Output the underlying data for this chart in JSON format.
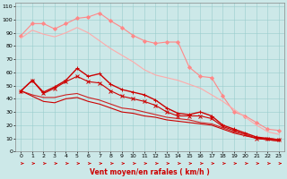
{
  "title": "",
  "xlabel": "Vent moyen/en rafales ( km/h )",
  "bg_color": "#cce8e8",
  "grid_color": "#99cccc",
  "x": [
    0,
    1,
    2,
    3,
    4,
    5,
    6,
    7,
    8,
    9,
    10,
    11,
    12,
    13,
    14,
    15,
    16,
    17,
    18,
    19,
    20,
    21,
    22,
    23
  ],
  "series": [
    {
      "color": "#ff8888",
      "data": [
        88,
        97,
        97,
        93,
        97,
        101,
        102,
        105,
        99,
        94,
        88,
        84,
        82,
        83,
        83,
        64,
        57,
        56,
        42,
        30,
        27,
        22,
        17,
        16
      ],
      "marker": "D",
      "ms": 2.0,
      "lw": 0.8
    },
    {
      "color": "#ffaaaa",
      "data": [
        86,
        92,
        89,
        87,
        90,
        94,
        90,
        84,
        78,
        73,
        68,
        62,
        58,
        56,
        54,
        51,
        48,
        43,
        38,
        32,
        26,
        20,
        15,
        13
      ],
      "marker": null,
      "ms": 0,
      "lw": 0.8
    },
    {
      "color": "#cc0000",
      "data": [
        46,
        54,
        45,
        49,
        54,
        63,
        57,
        59,
        51,
        47,
        45,
        43,
        39,
        33,
        29,
        28,
        30,
        27,
        20,
        17,
        14,
        11,
        10,
        9
      ],
      "marker": "+",
      "ms": 3.0,
      "lw": 1.0
    },
    {
      "color": "#cc0000",
      "data": [
        46,
        54,
        44,
        48,
        53,
        57,
        53,
        52,
        46,
        42,
        40,
        38,
        35,
        30,
        27,
        27,
        27,
        25,
        19,
        16,
        13,
        10,
        10,
        9
      ],
      "marker": "x",
      "ms": 2.5,
      "lw": 0.8
    },
    {
      "color": "#cc2222",
      "data": [
        46,
        43,
        41,
        41,
        43,
        44,
        41,
        39,
        36,
        33,
        32,
        30,
        28,
        26,
        25,
        24,
        22,
        21,
        18,
        15,
        13,
        10,
        9,
        8
      ],
      "marker": null,
      "ms": 0,
      "lw": 0.8
    },
    {
      "color": "#cc0000",
      "data": [
        46,
        42,
        38,
        37,
        40,
        41,
        38,
        36,
        33,
        30,
        29,
        27,
        26,
        24,
        23,
        22,
        21,
        20,
        17,
        14,
        12,
        10,
        9,
        8
      ],
      "marker": null,
      "ms": 0,
      "lw": 0.8
    }
  ],
  "xlim": [
    -0.5,
    23.5
  ],
  "ylim": [
    0,
    113
  ],
  "yticks": [
    0,
    10,
    20,
    30,
    40,
    50,
    60,
    70,
    80,
    90,
    100,
    110
  ],
  "xticks": [
    0,
    1,
    2,
    3,
    4,
    5,
    6,
    7,
    8,
    9,
    10,
    11,
    12,
    13,
    14,
    15,
    16,
    17,
    18,
    19,
    20,
    21,
    22,
    23
  ],
  "xlabel_fontsize": 5.5,
  "tick_fontsize": 4.5
}
